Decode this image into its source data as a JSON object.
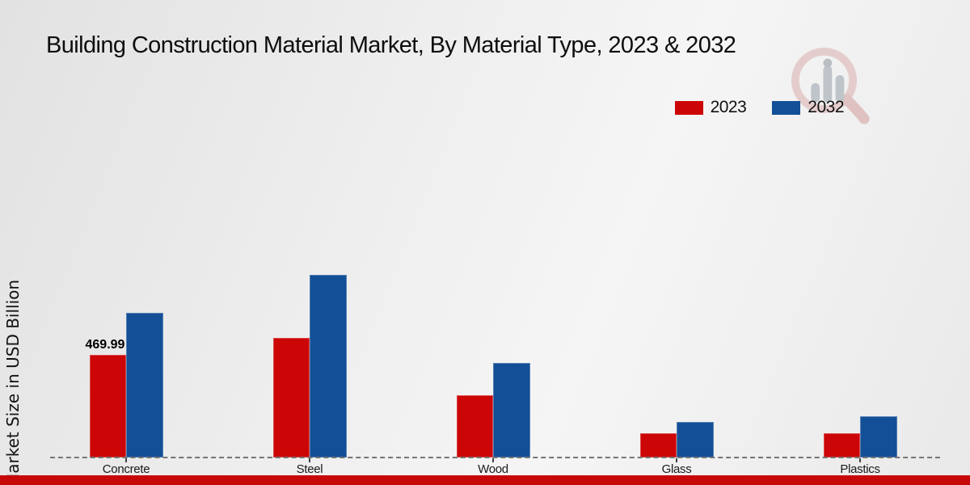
{
  "title": "Building Construction Material Market, By Material Type, 2023 & 2032",
  "ylabel": "Market Size in USD Billion",
  "colors": {
    "bar_2023": "#cc0606",
    "bar_2032": "#134f96",
    "footer_stripe": "#c60808",
    "baseline": "#757575",
    "title_text": "#0e0e0e"
  },
  "chart_data": {
    "type": "bar",
    "title": "Building Construction Material Market, By Material Type, 2023 & 2032",
    "xlabel": "",
    "ylabel": "Market Size in USD Billion",
    "categories": [
      "Concrete",
      "Steel",
      "Wood",
      "Glass",
      "Plastics"
    ],
    "series": [
      {
        "name": "2023",
        "color": "#cc0606",
        "values": [
          469.99,
          550,
          285,
          110,
          112
        ]
      },
      {
        "name": "2032",
        "color": "#134f96",
        "values": [
          665,
          840,
          435,
          162,
          190
        ]
      }
    ],
    "ylim": [
      0,
      900
    ],
    "grid": false,
    "y_axis_ticks_visible": false,
    "legend_position": "top-right",
    "baseline_style": "dashed",
    "annotations": [
      {
        "series": "2023",
        "category": "Concrete",
        "text": "469.99"
      }
    ]
  },
  "watermark": {
    "name": "magnifier-bar-chart-logo"
  }
}
